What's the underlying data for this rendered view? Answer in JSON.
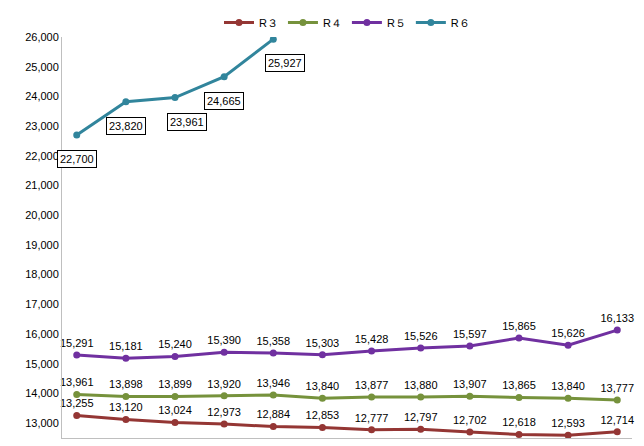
{
  "chart_data": {
    "type": "line",
    "categories": [
      null,
      null,
      null,
      null,
      null,
      null,
      null,
      null,
      null,
      null,
      null,
      null
    ],
    "series": [
      {
        "name": "R３",
        "color": "#943634",
        "marker": "circle",
        "values": [
          13255,
          13120,
          13024,
          12973,
          12884,
          12853,
          12777,
          12797,
          12702,
          12618,
          12593,
          12714
        ],
        "value_labels": [
          "13,255",
          "13,120",
          "13,024",
          "12,973",
          "12,884",
          "12,853",
          "12,777",
          "12,797",
          "12,702",
          "12,618",
          "12,593",
          "12,714"
        ]
      },
      {
        "name": "R４",
        "color": "#76923c",
        "marker": "circle",
        "values": [
          13961,
          13898,
          13899,
          13920,
          13946,
          13840,
          13877,
          13880,
          13907,
          13865,
          13840,
          13777
        ],
        "value_labels": [
          "13,961",
          "13,898",
          "13,899",
          "13,920",
          "13,946",
          "13,840",
          "13,877",
          "13,880",
          "13,907",
          "13,865",
          "13,840",
          "13,777"
        ]
      },
      {
        "name": "R５",
        "color": "#7030a0",
        "marker": "circle",
        "values": [
          15291,
          15181,
          15240,
          15390,
          15358,
          15303,
          15428,
          15526,
          15597,
          15865,
          15626,
          16133
        ],
        "value_labels": [
          "15,291",
          "15,181",
          "15,240",
          "15,390",
          "15,358",
          "15,303",
          "15,428",
          "15,526",
          "15,597",
          "15,865",
          "15,626",
          "16,133"
        ]
      },
      {
        "name": "R６",
        "color": "#31859c",
        "marker": "circle",
        "values": [
          22700,
          23820,
          23961,
          24665,
          25927,
          null,
          null,
          null,
          null,
          null,
          null,
          null
        ],
        "value_labels": [
          "22,700",
          "23,820",
          "23,961",
          "24,665",
          "25,927",
          null,
          null,
          null,
          null,
          null,
          null,
          null
        ]
      }
    ],
    "ylim": [
      12500,
      26000
    ],
    "yticks": [
      {
        "value": 13000,
        "label": "13,000"
      },
      {
        "value": 14000,
        "label": "14,000"
      },
      {
        "value": 15000,
        "label": "15,000"
      },
      {
        "value": 16000,
        "label": "16,000"
      },
      {
        "value": 17000,
        "label": "17,000"
      },
      {
        "value": 18000,
        "label": "18,000"
      },
      {
        "value": 19000,
        "label": "19,000"
      },
      {
        "value": 20000,
        "label": "20,000"
      },
      {
        "value": 21000,
        "label": "21,000"
      },
      {
        "value": 22000,
        "label": "22,000"
      },
      {
        "value": 23000,
        "label": "23,000"
      },
      {
        "value": 24000,
        "label": "24,000"
      },
      {
        "value": 25000,
        "label": "25,000"
      },
      {
        "value": 26000,
        "label": "26,000"
      }
    ],
    "grid": false,
    "legend": "top",
    "data_labels": true,
    "tick_labels": "y"
  }
}
